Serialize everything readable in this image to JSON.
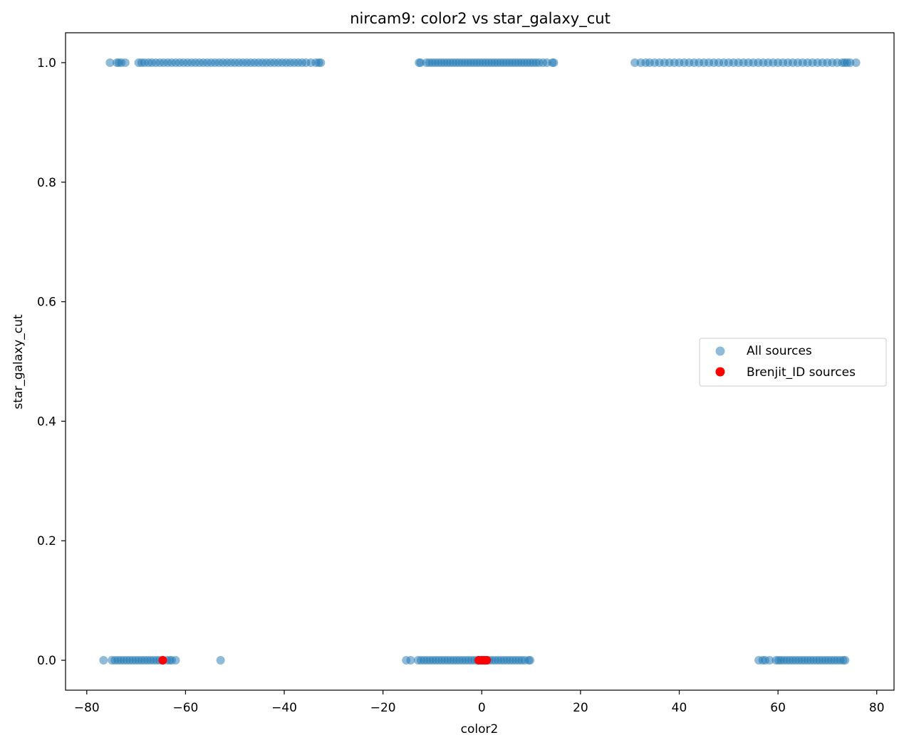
{
  "chart_data": {
    "type": "scatter",
    "title": "nircam9: color2 vs star_galaxy_cut",
    "xlabel": "color2",
    "ylabel": "star_galaxy_cut",
    "xlim": [
      -84.3,
      83.5
    ],
    "ylim": [
      -0.05,
      1.05
    ],
    "xticks": [
      -80,
      -60,
      -40,
      -20,
      0,
      20,
      40,
      60,
      80
    ],
    "xtick_labels": [
      "−80",
      "−60",
      "−40",
      "−20",
      "0",
      "20",
      "40",
      "60",
      "80"
    ],
    "yticks": [
      0.0,
      0.2,
      0.4,
      0.6,
      0.8,
      1.0
    ],
    "ytick_labels": [
      "0.0",
      "0.2",
      "0.4",
      "0.6",
      "0.8",
      "1.0"
    ],
    "grid": false,
    "legend_position": "center-right",
    "series": [
      {
        "name": "All sources",
        "color": "#1f77b4",
        "alpha": 0.5,
        "x": [
          -75.3,
          -73.9,
          -73.5,
          -73.0,
          -72.2,
          -69.5,
          -68.9,
          -68.3,
          -67.5,
          -66.8,
          -66.0,
          -65.2,
          -64.4,
          -63.6,
          -62.8,
          -62.0,
          -61.2,
          -60.4,
          -59.6,
          -58.8,
          -58.0,
          -57.2,
          -56.4,
          -55.6,
          -54.8,
          -54.0,
          -53.2,
          -52.4,
          -51.6,
          -50.8,
          -50.0,
          -49.2,
          -48.4,
          -47.6,
          -46.8,
          -46.0,
          -45.2,
          -44.4,
          -43.6,
          -42.8,
          -42.0,
          -41.2,
          -40.4,
          -39.6,
          -38.8,
          -38.0,
          -37.2,
          -36.4,
          -35.6,
          -34.6,
          -33.6,
          -33.0,
          -32.6,
          -12.7,
          -12.4,
          -11.2,
          -10.6,
          -10.0,
          -9.4,
          -8.8,
          -8.2,
          -7.6,
          -7.0,
          -6.4,
          -5.8,
          -5.2,
          -4.6,
          -4.0,
          -3.4,
          -2.8,
          -2.2,
          -1.6,
          -1.0,
          -0.4,
          0.2,
          0.8,
          1.4,
          2.0,
          2.6,
          3.2,
          3.8,
          4.4,
          5.0,
          5.6,
          6.2,
          6.8,
          7.4,
          8.0,
          8.6,
          9.2,
          9.8,
          10.4,
          11.0,
          11.6,
          12.4,
          13.2,
          14.3,
          14.6,
          31.0,
          32.2,
          33.2,
          34.0,
          35.0,
          36.0,
          37.0,
          38.0,
          39.0,
          40.0,
          41.0,
          42.0,
          43.0,
          44.0,
          45.0,
          46.0,
          47.0,
          48.0,
          49.0,
          50.0,
          51.0,
          52.0,
          53.0,
          54.0,
          55.0,
          56.0,
          57.0,
          58.0,
          59.0,
          60.0,
          61.0,
          62.0,
          63.0,
          64.0,
          65.0,
          66.0,
          67.0,
          68.0,
          69.0,
          70.0,
          71.0,
          72.0,
          73.0,
          73.5,
          74.0,
          74.6,
          75.8,
          -76.6,
          -74.9,
          -74.3,
          -73.7,
          -73.1,
          -72.5,
          -71.9,
          -71.3,
          -70.7,
          -70.1,
          -69.5,
          -68.9,
          -68.3,
          -67.7,
          -67.1,
          -66.5,
          -65.9,
          -65.3,
          -64.7,
          -63.8,
          -63.2,
          -62.8,
          -62.0,
          -52.9,
          -15.3,
          -14.4,
          -12.9,
          -12.3,
          -11.7,
          -11.1,
          -10.5,
          -9.9,
          -9.3,
          -8.7,
          -8.1,
          -7.5,
          -6.9,
          -6.3,
          -5.7,
          -5.1,
          -4.5,
          -3.9,
          -3.3,
          -2.7,
          -2.1,
          -1.5,
          -0.9,
          -0.3,
          0.3,
          0.9,
          1.5,
          2.1,
          2.7,
          3.3,
          3.9,
          4.5,
          5.1,
          5.7,
          6.3,
          6.9,
          7.5,
          8.1,
          8.7,
          9.5,
          9.8,
          56.1,
          56.9,
          57.4,
          58.3,
          59.6,
          60.1,
          60.6,
          61.2,
          61.8,
          62.4,
          63.0,
          63.6,
          64.2,
          64.8,
          65.4,
          66.0,
          66.6,
          67.2,
          67.8,
          68.4,
          69.0,
          69.6,
          70.2,
          70.8,
          71.4,
          72.0,
          72.6,
          73.2,
          73.6
        ],
        "y": [
          1,
          1,
          1,
          1,
          1,
          1,
          1,
          1,
          1,
          1,
          1,
          1,
          1,
          1,
          1,
          1,
          1,
          1,
          1,
          1,
          1,
          1,
          1,
          1,
          1,
          1,
          1,
          1,
          1,
          1,
          1,
          1,
          1,
          1,
          1,
          1,
          1,
          1,
          1,
          1,
          1,
          1,
          1,
          1,
          1,
          1,
          1,
          1,
          1,
          1,
          1,
          1,
          1,
          1,
          1,
          1,
          1,
          1,
          1,
          1,
          1,
          1,
          1,
          1,
          1,
          1,
          1,
          1,
          1,
          1,
          1,
          1,
          1,
          1,
          1,
          1,
          1,
          1,
          1,
          1,
          1,
          1,
          1,
          1,
          1,
          1,
          1,
          1,
          1,
          1,
          1,
          1,
          1,
          1,
          1,
          1,
          1,
          1,
          1,
          1,
          1,
          1,
          1,
          1,
          1,
          1,
          1,
          1,
          1,
          1,
          1,
          1,
          1,
          1,
          1,
          1,
          1,
          1,
          1,
          1,
          1,
          1,
          1,
          1,
          1,
          1,
          1,
          1,
          1,
          1,
          1,
          1,
          1,
          1,
          1,
          1,
          1,
          1,
          1,
          1,
          1,
          1,
          1,
          1,
          1,
          0,
          0,
          0,
          0,
          0,
          0,
          0,
          0,
          0,
          0,
          0,
          0,
          0,
          0,
          0,
          0,
          0,
          0,
          0,
          0,
          0,
          0,
          0,
          0,
          0,
          0,
          0,
          0,
          0,
          0,
          0,
          0,
          0,
          0,
          0,
          0,
          0,
          0,
          0,
          0,
          0,
          0,
          0,
          0,
          0,
          0,
          0,
          0,
          0,
          0,
          0,
          0,
          0,
          0,
          0,
          0,
          0,
          0,
          0,
          0,
          0,
          0,
          0,
          0,
          0,
          0,
          0,
          0,
          0,
          0,
          0,
          0,
          0,
          0,
          0,
          0,
          0,
          0,
          0,
          0,
          0,
          0,
          0,
          0,
          0,
          0,
          0,
          0,
          0,
          0,
          0,
          0,
          0,
          0
        ]
      },
      {
        "name": "Brenjit_ID sources",
        "color": "#ff0000",
        "alpha": 1.0,
        "x": [
          -64.6,
          -0.6,
          0.0,
          0.5,
          1.0
        ],
        "y": [
          0,
          0,
          0,
          0,
          0
        ]
      }
    ]
  }
}
